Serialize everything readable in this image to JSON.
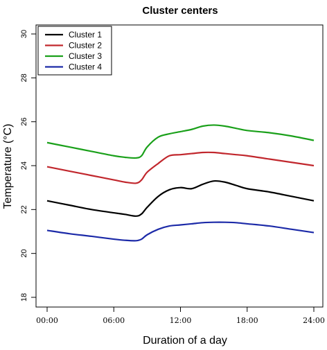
{
  "chart_data": {
    "type": "line",
    "title": "Cluster centers",
    "xlabel": "Duration of a day",
    "ylabel": "Temperature (°C)",
    "xlim": [
      0,
      24
    ],
    "ylim": [
      18,
      30
    ],
    "x_ticks": [
      {
        "value": 0,
        "label": "00:00"
      },
      {
        "value": 6,
        "label": "06:00"
      },
      {
        "value": 12,
        "label": "12:00"
      },
      {
        "value": 18,
        "label": "18:00"
      },
      {
        "value": 24,
        "label": "24:00"
      }
    ],
    "y_ticks": [
      {
        "value": 18,
        "label": "18"
      },
      {
        "value": 20,
        "label": "20"
      },
      {
        "value": 22,
        "label": "22"
      },
      {
        "value": 24,
        "label": "24"
      },
      {
        "value": 26,
        "label": "26"
      },
      {
        "value": 28,
        "label": "28"
      },
      {
        "value": 30,
        "label": "30"
      }
    ],
    "grid": false,
    "legend_position": "top-left",
    "x": [
      0,
      2,
      4,
      6,
      7,
      8,
      8.5,
      9,
      10,
      11,
      12,
      13,
      14,
      15,
      16,
      17,
      18,
      20,
      22,
      24
    ],
    "series": [
      {
        "name": "Cluster 1",
        "color": "#000000",
        "values": [
          22.4,
          22.2,
          22.0,
          21.85,
          21.78,
          21.7,
          21.8,
          22.1,
          22.6,
          22.9,
          23.0,
          22.95,
          23.15,
          23.3,
          23.25,
          23.1,
          22.95,
          22.8,
          22.6,
          22.4
        ]
      },
      {
        "name": "Cluster 2",
        "color": "#c1272d",
        "values": [
          23.95,
          23.75,
          23.55,
          23.35,
          23.25,
          23.2,
          23.35,
          23.7,
          24.1,
          24.45,
          24.5,
          24.55,
          24.6,
          24.6,
          24.55,
          24.5,
          24.45,
          24.3,
          24.15,
          24.0
        ]
      },
      {
        "name": "Cluster 3",
        "color": "#1aa01a",
        "values": [
          25.05,
          24.85,
          24.65,
          24.45,
          24.38,
          24.35,
          24.45,
          24.85,
          25.3,
          25.45,
          25.55,
          25.65,
          25.8,
          25.85,
          25.8,
          25.7,
          25.6,
          25.5,
          25.35,
          25.15
        ]
      },
      {
        "name": "Cluster 4",
        "color": "#1c2aa8",
        "values": [
          21.05,
          20.9,
          20.78,
          20.65,
          20.6,
          20.58,
          20.65,
          20.85,
          21.1,
          21.25,
          21.3,
          21.35,
          21.4,
          21.42,
          21.42,
          21.4,
          21.35,
          21.25,
          21.1,
          20.95
        ]
      }
    ]
  }
}
